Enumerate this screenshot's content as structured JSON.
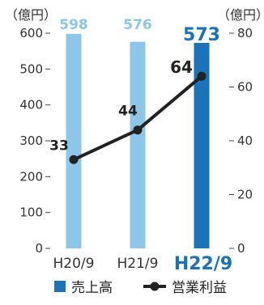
{
  "chart_data": {
    "type": "bar",
    "categories": [
      "H20/9",
      "H21/9",
      "H22/9"
    ],
    "highlight_category": "H22/9",
    "left_axis": {
      "unit": "（億円）",
      "ylim": [
        0,
        600
      ],
      "ticks": [
        0,
        100,
        200,
        300,
        400,
        500,
        600
      ],
      "tick_labels": [
        "0",
        "100",
        "200",
        "300",
        "400",
        "500",
        "600"
      ]
    },
    "right_axis": {
      "unit": "（億円）",
      "ylim": [
        0,
        80
      ],
      "ticks": [
        0,
        20,
        40,
        60,
        80
      ],
      "tick_labels": [
        "0",
        "20",
        "40",
        "60",
        "80"
      ]
    },
    "series": [
      {
        "name": "売上高",
        "type": "bar",
        "axis": "left",
        "values": [
          598,
          576,
          573
        ],
        "labels": [
          "598",
          "576",
          "573"
        ],
        "color": "#8cc6e8",
        "highlight_color": "#1a72b8"
      },
      {
        "name": "営業利益",
        "type": "line",
        "axis": "right",
        "values": [
          33,
          44,
          64
        ],
        "labels": [
          "33",
          "44",
          "64"
        ],
        "color": "#222222"
      }
    ],
    "grid": false,
    "legend_position": "bottom"
  }
}
